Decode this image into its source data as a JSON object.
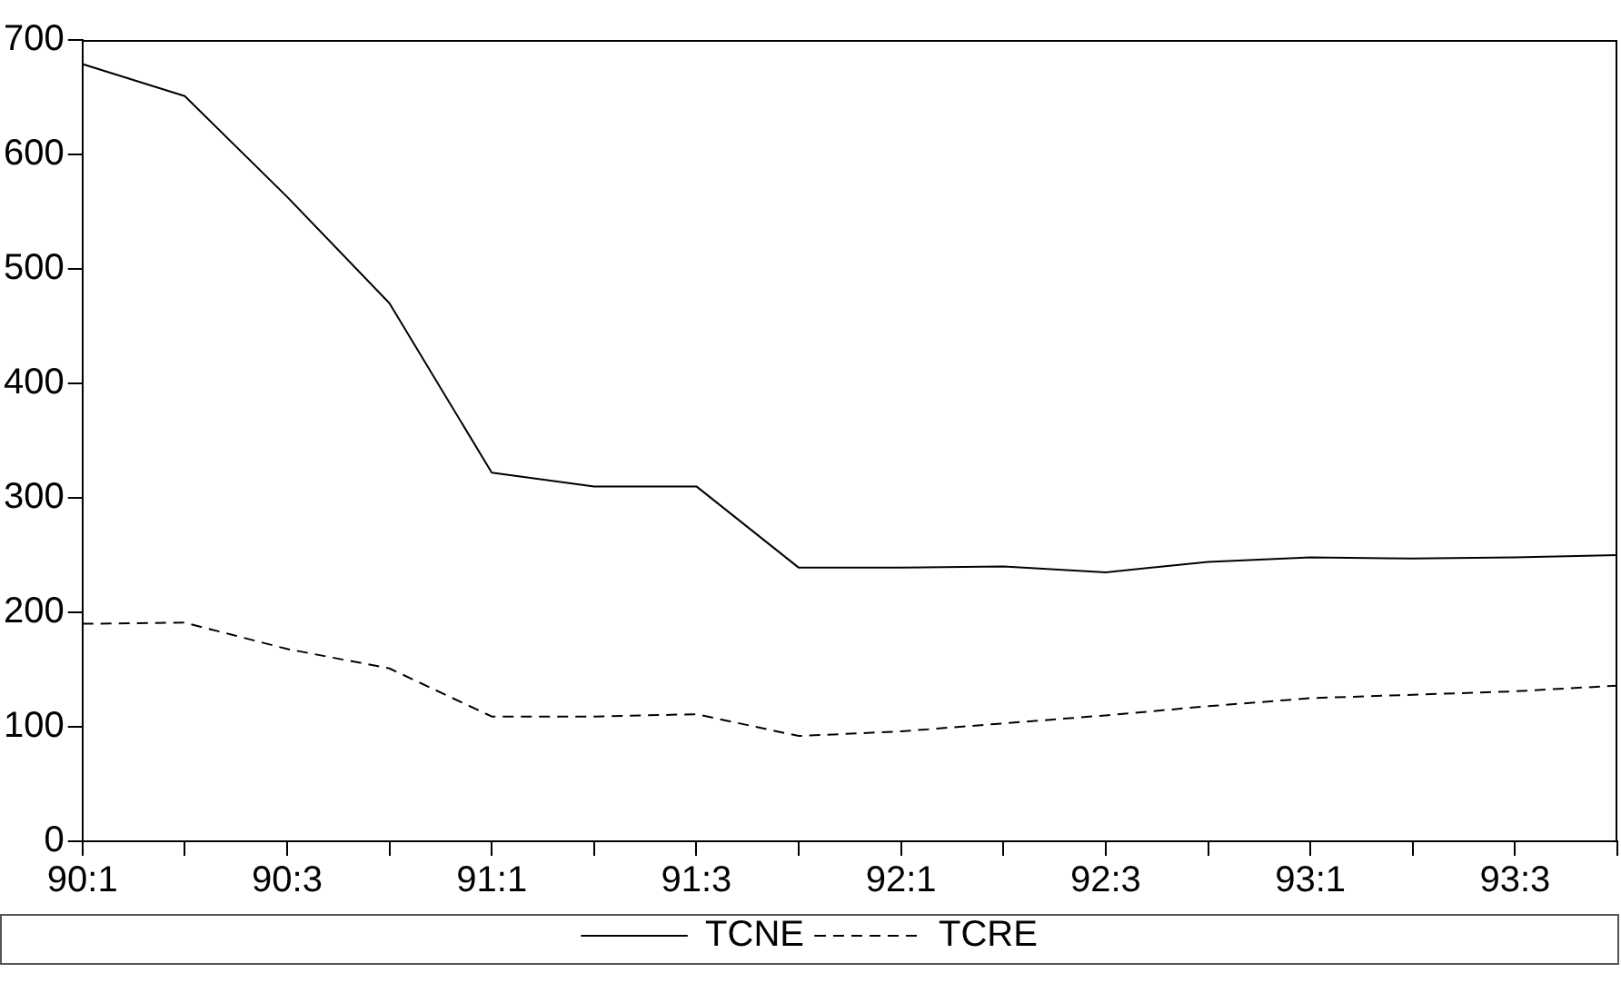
{
  "chart_data": {
    "type": "line",
    "categories": [
      "90:1",
      null,
      "90:3",
      null,
      "91:1",
      null,
      "91:3",
      null,
      "92:1",
      null,
      "92:3",
      null,
      "93:1",
      null,
      "93:3",
      null
    ],
    "series": [
      {
        "name": "TCNE",
        "color": "#000000",
        "line_style": "solid",
        "values": [
          679,
          651,
          563,
          470,
          322,
          310,
          310,
          239,
          239,
          240,
          235,
          244,
          248,
          247,
          248,
          250
        ]
      },
      {
        "name": "TCRE",
        "color": "#000000",
        "line_style": "dashed",
        "values": [
          190,
          191,
          168,
          151,
          109,
          109,
          111,
          92,
          96,
          103,
          110,
          118,
          125,
          128,
          131,
          136
        ]
      }
    ],
    "ylim": [
      0,
      700
    ],
    "yticks": [
      0,
      100,
      200,
      300,
      400,
      500,
      600,
      700
    ],
    "grid": false,
    "legend": "bottom",
    "marker": "none"
  }
}
